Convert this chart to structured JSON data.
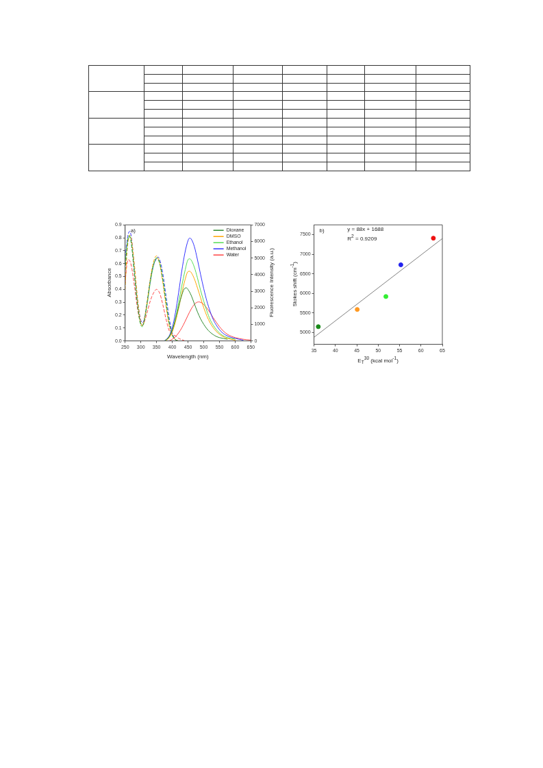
{
  "chart_data": [
    {
      "type": "line",
      "xlabel": "Wavelength (nm)",
      "ylabel": "Absorbance",
      "y2label": "Fluorescence Intensity (a.u.)",
      "annotations": [
        "a)"
      ],
      "xlim": [
        250,
        650
      ],
      "xticks": [
        250,
        300,
        350,
        400,
        450,
        500,
        550,
        600,
        650
      ],
      "ylim": [
        0,
        0.9
      ],
      "yticks": [
        {
          "value": 0,
          "label": "0.0"
        },
        0.1,
        0.2,
        0.3,
        0.4,
        0.5,
        0.6,
        0.7,
        0.8,
        0.9
      ],
      "y2lim": [
        0,
        7000
      ],
      "y2ticks": [
        0,
        1000,
        2000,
        3000,
        4000,
        5000,
        6000,
        7000
      ],
      "legend": "top right",
      "marker": "none",
      "series": [
        {
          "name": "Dioxane",
          "color": "#2e8b2e",
          "axis": "y2",
          "x": [
            375,
            390,
            400,
            410,
            420,
            430,
            440,
            445,
            450,
            460,
            470,
            480,
            490,
            500,
            510,
            520,
            530,
            540,
            550,
            575
          ],
          "values": [
            0,
            250,
            650,
            1300,
            2050,
            2750,
            3180,
            3200,
            3100,
            2750,
            2250,
            1750,
            1330,
            1000,
            730,
            530,
            380,
            270,
            200,
            100
          ]
        },
        {
          "name": "DMSO",
          "color": "#ffa500",
          "axis": "y2",
          "x": [
            380,
            390,
            400,
            410,
            420,
            430,
            440,
            450,
            455,
            460,
            470,
            480,
            490,
            500,
            510,
            520,
            530,
            540,
            550,
            560,
            575,
            600
          ],
          "values": [
            0,
            200,
            550,
            1150,
            1950,
            2850,
            3650,
            4180,
            4200,
            4130,
            3750,
            3200,
            2600,
            2000,
            1500,
            1100,
            800,
            570,
            400,
            270,
            150,
            50
          ]
        },
        {
          "name": "Ethanol",
          "color": "#55dd55",
          "axis": "y2",
          "x": [
            380,
            390,
            400,
            410,
            420,
            430,
            440,
            450,
            455,
            460,
            470,
            480,
            490,
            500,
            510,
            520,
            530,
            540,
            550,
            560,
            575,
            600
          ],
          "values": [
            0,
            250,
            650,
            1350,
            2300,
            3300,
            4200,
            4900,
            4950,
            4880,
            4450,
            3800,
            3050,
            2400,
            1800,
            1300,
            950,
            680,
            480,
            330,
            200,
            100
          ]
        },
        {
          "name": "Methanol",
          "color": "#3333ff",
          "axis": "y2",
          "x": [
            375,
            390,
            400,
            410,
            420,
            430,
            440,
            450,
            455,
            460,
            470,
            480,
            490,
            500,
            510,
            520,
            530,
            540,
            550,
            560,
            575,
            600,
            625
          ],
          "values": [
            0,
            300,
            800,
            1700,
            2900,
            4200,
            5300,
            6050,
            6200,
            6150,
            5700,
            4900,
            4000,
            3150,
            2400,
            1800,
            1300,
            950,
            680,
            480,
            300,
            150,
            50
          ]
        },
        {
          "name": "Water",
          "color": "#ff4444",
          "axis": "y2",
          "x": [
            390,
            400,
            410,
            420,
            430,
            440,
            450,
            460,
            470,
            480,
            485,
            490,
            500,
            510,
            520,
            530,
            540,
            550,
            560,
            575,
            600,
            625,
            650
          ],
          "values": [
            0,
            100,
            250,
            480,
            780,
            1150,
            1550,
            1920,
            2200,
            2340,
            2350,
            2330,
            2200,
            1980,
            1700,
            1400,
            1120,
            860,
            640,
            400,
            200,
            100,
            50
          ]
        },
        {
          "color": "#2e8b2e",
          "line_style": "dashed",
          "x": [
            250,
            255,
            260,
            263,
            270,
            280,
            290,
            300,
            305,
            310,
            320,
            330,
            340,
            350,
            355,
            360,
            370,
            380,
            390,
            400,
            410,
            420
          ],
          "values": [
            0.55,
            0.7,
            0.8,
            0.81,
            0.75,
            0.5,
            0.27,
            0.13,
            0.12,
            0.15,
            0.3,
            0.47,
            0.59,
            0.64,
            0.63,
            0.6,
            0.47,
            0.3,
            0.14,
            0.05,
            0.01,
            0
          ]
        },
        {
          "color": "#ffa500",
          "line_style": "dashed",
          "x": [
            250,
            255,
            260,
            265,
            270,
            280,
            290,
            300,
            305,
            310,
            320,
            330,
            340,
            350,
            355,
            360,
            370,
            380,
            390,
            400,
            410,
            420
          ],
          "values": [
            0.4,
            0.65,
            0.78,
            0.82,
            0.79,
            0.58,
            0.32,
            0.14,
            0.12,
            0.15,
            0.3,
            0.48,
            0.61,
            0.66,
            0.64,
            0.6,
            0.45,
            0.27,
            0.12,
            0.04,
            0.01,
            0
          ]
        },
        {
          "color": "#55dd55",
          "line_style": "dashed",
          "x": [
            250,
            255,
            260,
            263,
            270,
            280,
            290,
            300,
            305,
            310,
            320,
            330,
            340,
            350,
            355,
            360,
            370,
            380,
            390,
            400,
            410,
            420
          ],
          "values": [
            0.6,
            0.72,
            0.8,
            0.82,
            0.76,
            0.52,
            0.27,
            0.12,
            0.11,
            0.14,
            0.28,
            0.45,
            0.58,
            0.645,
            0.64,
            0.61,
            0.48,
            0.31,
            0.14,
            0.04,
            0.01,
            0
          ]
        },
        {
          "color": "#3333ff",
          "line_style": "dashed",
          "x": [
            250,
            255,
            260,
            265,
            270,
            280,
            290,
            300,
            305,
            310,
            320,
            330,
            340,
            350,
            355,
            360,
            370,
            380,
            390,
            400,
            410,
            420
          ],
          "values": [
            0.65,
            0.75,
            0.83,
            0.85,
            0.8,
            0.55,
            0.3,
            0.16,
            0.14,
            0.16,
            0.3,
            0.46,
            0.58,
            0.64,
            0.65,
            0.63,
            0.52,
            0.35,
            0.18,
            0.06,
            0.01,
            0
          ]
        },
        {
          "color": "#ff4444",
          "line_style": "dashed",
          "x": [
            250,
            255,
            260,
            265,
            270,
            280,
            290,
            300,
            305,
            310,
            320,
            330,
            340,
            350,
            355,
            360,
            370,
            380,
            390,
            400,
            410,
            420,
            430,
            440
          ],
          "values": [
            0.45,
            0.58,
            0.63,
            0.62,
            0.58,
            0.42,
            0.24,
            0.13,
            0.12,
            0.14,
            0.22,
            0.31,
            0.37,
            0.4,
            0.39,
            0.37,
            0.28,
            0.17,
            0.08,
            0.05,
            0.04,
            0.02,
            0.01,
            0
          ]
        }
      ]
    },
    {
      "type": "scatter",
      "xlabel": "E$_{T}$$^{30}$ (kcal mol$^{-1}$)",
      "ylabel": "Stokes shift (cm$^{-1}$)",
      "annotations": [
        "b)",
        "y = 88x + 1688",
        "R$^{2}$ = 0.9209"
      ],
      "xlim": [
        35,
        65
      ],
      "xticks": [
        35,
        40,
        45,
        50,
        55,
        60,
        65
      ],
      "ylim": [
        4700,
        7750
      ],
      "yticks": [
        5000,
        5500,
        6000,
        6500,
        7000,
        7500
      ],
      "marker": "circle",
      "series": [
        {
          "x": [
            36.0,
            45.1,
            51.8,
            55.3,
            62.9
          ],
          "values": [
            5150,
            5590,
            5920,
            6730,
            7410
          ],
          "colors": [
            "#1a8a1a",
            "#ff9922",
            "#33ee33",
            "#2222ee",
            "#ee1111"
          ]
        },
        {
          "type": "line",
          "marker": "none",
          "color": "#808080",
          "x": [
            35,
            65
          ],
          "values": [
            4880,
            7400
          ]
        }
      ]
    }
  ]
}
